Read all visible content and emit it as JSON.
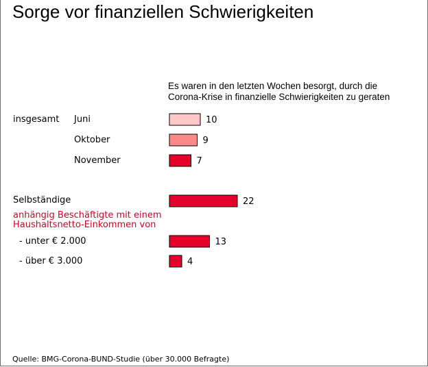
{
  "title": "Sorge vor finanziellen Schwierigkeiten",
  "subtitle_line1": "Es waren in den letzten Wochen besorgt, durch die",
  "subtitle_line2": "Corona-Krise in finanzielle Schwierigkeiten zu geraten",
  "group_insgesamt": "insgesamt",
  "group_abhaengig_line1": "anhängig Beschäftigte mit einem",
  "group_abhaengig_line2": "Haushaltsnetto-Einkommen von",
  "source": "Quelle:  BMG-Corona-BUND-Studie (über 30.000 Befragte)",
  "colors": {
    "light_pink": "#fec8c8",
    "salmon": "#fd8a8a",
    "red": "#e4002b",
    "red_text": "#d4002a"
  },
  "chart_data": {
    "type": "bar",
    "orientation": "horizontal",
    "title": "Sorge vor finanziellen Schwierigkeiten",
    "subtitle": "Es waren in den letzten Wochen besorgt, durch die Corona-Krise in finanzielle Schwierigkeiten zu geraten",
    "unit": "%",
    "categories": [
      "Juni",
      "Oktober",
      "November",
      "Selbständige",
      "- unter € 2.000",
      "- über € 3.000"
    ],
    "values": [
      10,
      9,
      7,
      22,
      13,
      4
    ],
    "value_labels": [
      "10",
      "9",
      "7",
      "22",
      "13",
      "4"
    ],
    "bar_colors": [
      "#fec8c8",
      "#fd8a8a",
      "#e4002b",
      "#e4002b",
      "#e4002b",
      "#e4002b"
    ],
    "groups": [
      "insgesamt",
      "insgesamt",
      "insgesamt",
      "",
      "anhängig Beschäftigte mit einem Haushaltsnetto-Einkommen von",
      "anhängig Beschäftigte mit einem Haushaltsnetto-Einkommen von"
    ],
    "xlabel": "",
    "ylabel": "",
    "xlim": [
      0,
      22
    ],
    "grid": false
  }
}
